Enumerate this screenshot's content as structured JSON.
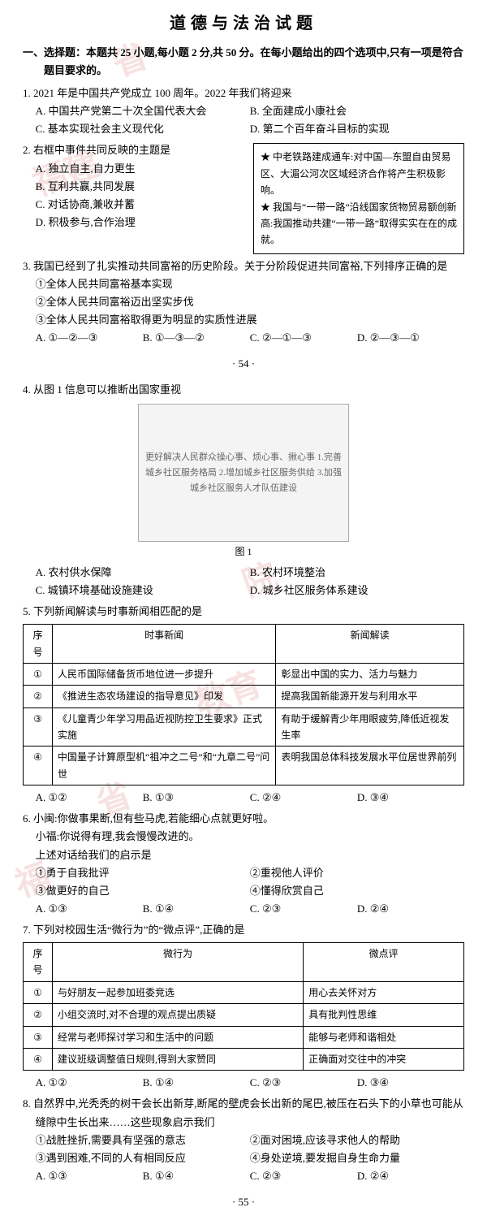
{
  "watermarks": [
    "省",
    "福建",
    "院",
    "教育",
    "省",
    "福"
  ],
  "title": "道德与法治试题",
  "section1_head": "一、选择题：本题共 25 小题,每小题 2 分,共 50 分。在每小题给出的四个选项中,只有一项是符合题目要求的。",
  "q1": {
    "text": "1. 2021 年是中国共产党成立 100 周年。2022 年我们将迎来",
    "A": "A. 中国共产党第二十次全国代表大会",
    "B": "B. 全面建成小康社会",
    "C": "C. 基本实现社会主义现代化",
    "D": "D. 第二个百年奋斗目标的实现"
  },
  "q2": {
    "text": "2. 右框中事件共同反映的主题是",
    "A": "A. 独立自主,自力更生",
    "B": "B. 互利共赢,共同发展",
    "C": "C. 对话协商,兼收并蓄",
    "D": "D. 积极参与,合作治理",
    "box1": "★ 中老铁路建成通车:对中国—东盟自由贸易区、大湄公河次区域经济合作将产生积极影响。",
    "box2": "★ 我国与“一带一路”沿线国家货物贸易额创新高:我国推动共建“一带一路”取得实实在在的成就。"
  },
  "q3": {
    "text": "3. 我国已经到了扎实推动共同富裕的历史阶段。关于分阶段促进共同富裕,下列排序正确的是",
    "s1": "①全体人民共同富裕基本实现",
    "s2": "②全体人民共同富裕迈出坚实步伐",
    "s3": "③全体人民共同富裕取得更为明显的实质性进展",
    "A": "A. ①—②—③",
    "B": "B. ①—③—②",
    "C": "C. ②—①—③",
    "D": "D. ②—③—①"
  },
  "page54": "· 54 ·",
  "q4": {
    "text": "4. 从图 1 信息可以推断出国家重视",
    "fig_desc": "更好解决人民群众操心事、烦心事、揪心事\n1.完善城乡社区服务格局 2.增加城乡社区服务供给 3.加强城乡社区服务人才队伍建设",
    "fig_caption": "图 1",
    "A": "A. 农村供水保障",
    "B": "B. 农村环境整治",
    "C": "C. 城镇环境基础设施建设",
    "D": "D. 城乡社区服务体系建设"
  },
  "q5": {
    "text": "5. 下列新闻解读与时事新闻相匹配的是",
    "headers": [
      "序号",
      "时事新闻",
      "新闻解读"
    ],
    "rows": [
      [
        "①",
        "人民币国际储备货币地位进一步提升",
        "彰显出中国的实力、活力与魅力"
      ],
      [
        "②",
        "《推进生态农场建设的指导意见》印发",
        "提高我国新能源开发与利用水平"
      ],
      [
        "③",
        "《儿童青少年学习用品近视防控卫生要求》正式实施",
        "有助于缓解青少年用眼疲劳,降低近视发生率"
      ],
      [
        "④",
        "中国量子计算原型机“祖冲之二号”和“九章二号”问世",
        "表明我国总体科技发展水平位居世界前列"
      ]
    ],
    "A": "A. ①②",
    "B": "B. ①③",
    "C": "C. ②④",
    "D": "D. ③④"
  },
  "q6": {
    "l1": "6. 小闽:你做事果断,但有些马虎,若能细心点就更好啦。",
    "l2": "小福:你说得有理,我会慢慢改进的。",
    "l3": "上述对话给我们的启示是",
    "s1": "①勇于自我批评",
    "s2": "②重视他人评价",
    "s3": "③做更好的自己",
    "s4": "④懂得欣赏自己",
    "A": "A. ①③",
    "B": "B. ①④",
    "C": "C. ②③",
    "D": "D. ②④"
  },
  "q7": {
    "text": "7. 下列对校园生活“微行为”的“微点评”,正确的是",
    "headers": [
      "序号",
      "微行为",
      "微点评"
    ],
    "rows": [
      [
        "①",
        "与好朋友一起参加班委竞选",
        "用心去关怀对方"
      ],
      [
        "②",
        "小组交流时,对不合理的观点提出质疑",
        "具有批判性思维"
      ],
      [
        "③",
        "经常与老师探讨学习和生活中的问题",
        "能够与老师和谐相处"
      ],
      [
        "④",
        "建议班级调整值日规则,得到大家赞同",
        "正确面对交往中的冲突"
      ]
    ],
    "A": "A. ①②",
    "B": "B. ①④",
    "C": "C. ②③",
    "D": "D. ③④"
  },
  "q8": {
    "text": "8. 自然界中,光秃秃的树干会长出新芽,断尾的壁虎会长出新的尾巴,被压在石头下的小草也可能从缝隙中生长出来……这些现象启示我们",
    "s1": "①战胜挫折,需要具有坚强的意志",
    "s2": "②面对困境,应该寻求他人的帮助",
    "s3": "③遇到困难,不同的人有相同反应",
    "s4": "④身处逆境,要发掘自身生命力量",
    "A": "A. ①③",
    "B": "B. ①④",
    "C": "C. ②③",
    "D": "D. ②④"
  },
  "page55": "· 55 ·"
}
